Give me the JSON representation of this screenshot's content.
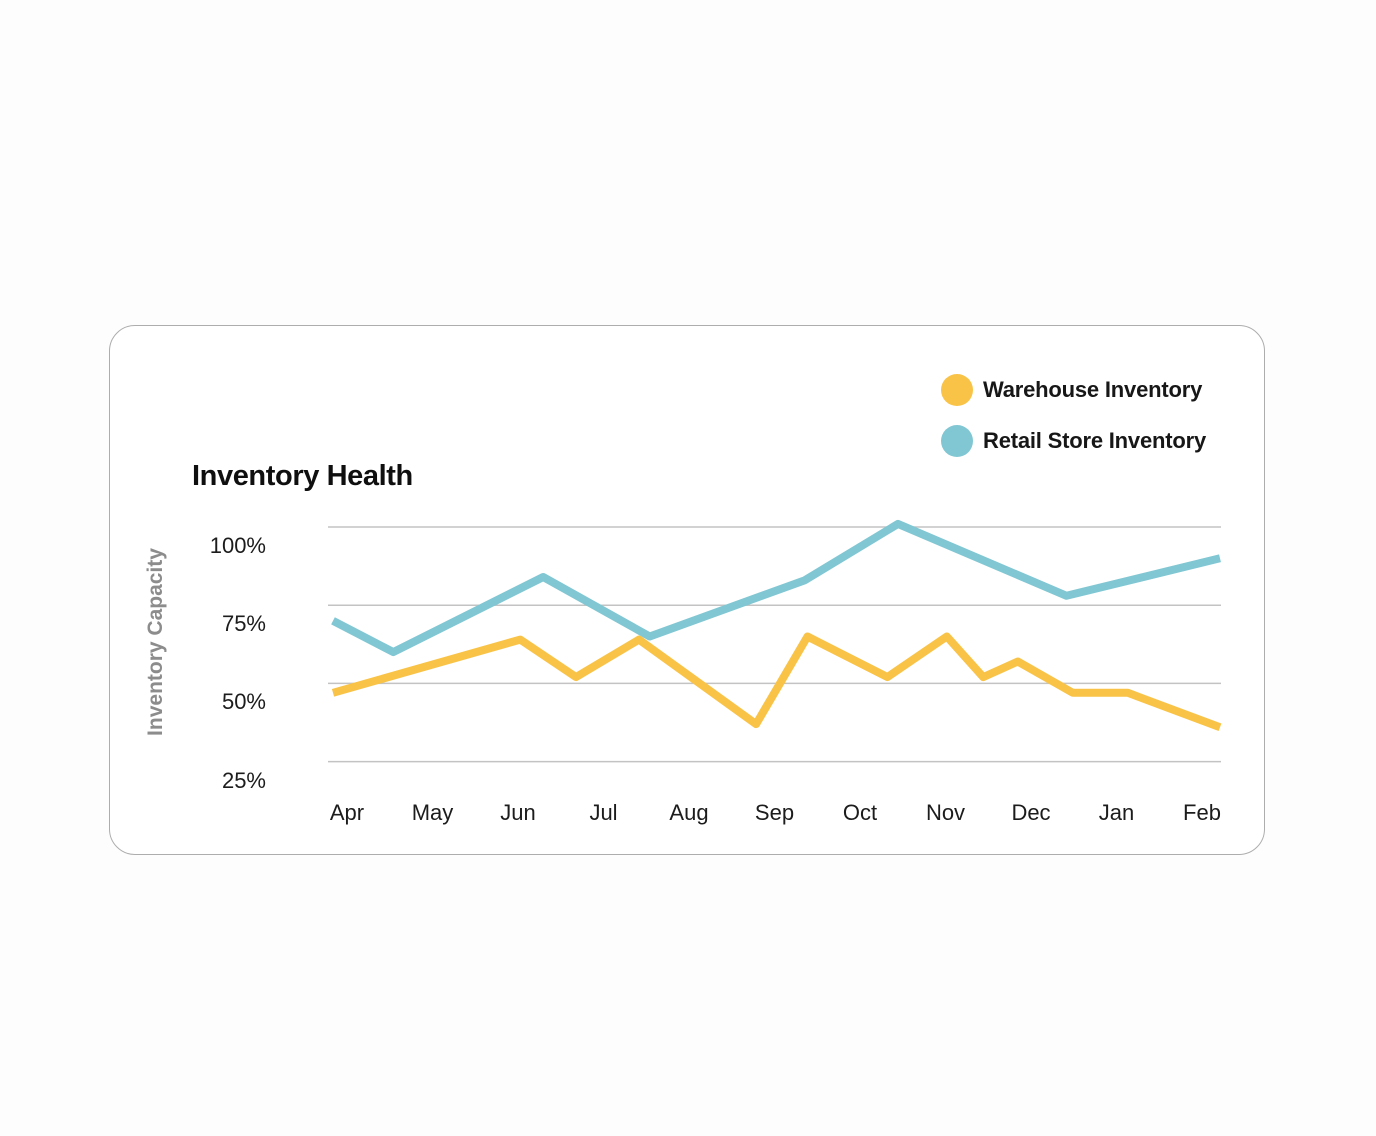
{
  "card": {
    "title": "Inventory Health"
  },
  "chart_data": {
    "type": "line",
    "title": "Inventory Health",
    "ylabel": "Inventory Capacity",
    "xlabel": "",
    "categories": [
      "Apr",
      "May",
      "Jun",
      "Jul",
      "Aug",
      "Sep",
      "Oct",
      "Nov",
      "Dec",
      "Jan",
      "Feb"
    ],
    "y_axis": {
      "unit": "%",
      "ticks": [
        {
          "label": "100%",
          "value": 100
        },
        {
          "label": "75%",
          "value": 75
        },
        {
          "label": "50%",
          "value": 50
        },
        {
          "label": "25%",
          "value": 25
        }
      ]
    },
    "grid": true,
    "legend": {
      "position": "top-right"
    },
    "points_format": "[x_fraction_of_plot_width, y_percent]",
    "series": [
      {
        "name": "Warehouse Inventory",
        "color": "#F9C347",
        "points": [
          [
            0.0,
            47
          ],
          [
            0.211,
            64
          ],
          [
            0.274,
            52
          ],
          [
            0.345,
            64
          ],
          [
            0.477,
            37
          ],
          [
            0.535,
            65
          ],
          [
            0.625,
            52
          ],
          [
            0.692,
            65
          ],
          [
            0.733,
            52
          ],
          [
            0.772,
            57
          ],
          [
            0.834,
            47
          ],
          [
            0.896,
            47
          ],
          [
            1.0,
            36
          ]
        ]
      },
      {
        "name": "Retail Store Inventory",
        "color": "#80C7D3",
        "points": [
          [
            0.0,
            70
          ],
          [
            0.068,
            60
          ],
          [
            0.237,
            84
          ],
          [
            0.357,
            65
          ],
          [
            0.532,
            83
          ],
          [
            0.637,
            101
          ],
          [
            0.827,
            78
          ],
          [
            1.0,
            90
          ]
        ]
      }
    ]
  }
}
